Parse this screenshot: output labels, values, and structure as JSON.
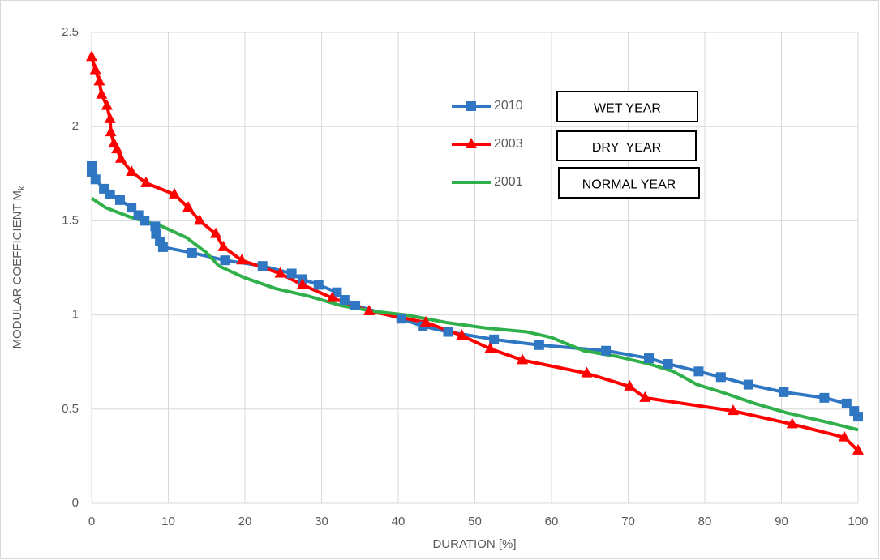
{
  "chart_data": {
    "type": "line",
    "x_label": "DURATION [%]",
    "y_label": "MODULAR COEFFICIENT M",
    "y_label_subscript": "k",
    "xlim": [
      0,
      100
    ],
    "xticks": [
      0,
      10,
      20,
      30,
      40,
      50,
      60,
      70,
      80,
      90,
      100
    ],
    "ylim": [
      0,
      2.5
    ],
    "yticks": [
      0,
      0.5,
      1,
      1.5,
      2,
      2.5
    ],
    "grid": true,
    "annotations": [
      "WET YEAR",
      "DRY  YEAR",
      "NORMAL YEAR"
    ],
    "series": [
      {
        "name": "2010",
        "color": "#2f77c2",
        "marker": "square",
        "x": [
          0,
          0,
          0.5,
          1.6,
          2.4,
          3.7,
          5.2,
          6.1,
          6.9,
          8.3,
          8.4,
          8.9,
          9.3,
          13.1,
          17.4,
          22.3,
          26.1,
          27.5,
          29.6,
          32,
          33,
          34.4,
          40.4,
          43.2,
          46.5,
          52.5,
          58.4,
          67.1,
          72.7,
          75.2,
          79.2,
          82.1,
          85.7,
          90.3,
          95.6,
          98.5,
          99.5,
          100
        ],
        "values": [
          1.79,
          1.76,
          1.72,
          1.67,
          1.64,
          1.61,
          1.57,
          1.53,
          1.5,
          1.47,
          1.43,
          1.39,
          1.36,
          1.33,
          1.29,
          1.26,
          1.22,
          1.19,
          1.16,
          1.12,
          1.08,
          1.05,
          0.98,
          0.94,
          0.91,
          0.87,
          0.84,
          0.81,
          0.77,
          0.74,
          0.7,
          0.67,
          0.63,
          0.59,
          0.56,
          0.53,
          0.49,
          0.46
        ]
      },
      {
        "name": "2003",
        "color": "#ff0000",
        "marker": "triangle",
        "x": [
          0,
          0.5,
          1,
          1.3,
          2,
          2.4,
          2.5,
          2.9,
          3.3,
          3.8,
          5.2,
          7.1,
          10.8,
          12.6,
          14.1,
          16.2,
          17.2,
          19.6,
          24.6,
          27.5,
          31.4,
          36.2,
          43.6,
          48.3,
          52,
          56.2,
          64.6,
          70.2,
          72.2,
          83.7,
          91.4,
          98.2,
          100
        ],
        "values": [
          2.37,
          2.3,
          2.24,
          2.17,
          2.11,
          2.04,
          1.97,
          1.91,
          1.88,
          1.83,
          1.76,
          1.7,
          1.64,
          1.57,
          1.5,
          1.43,
          1.36,
          1.29,
          1.22,
          1.16,
          1.09,
          1.02,
          0.96,
          0.89,
          0.82,
          0.76,
          0.69,
          0.62,
          0.56,
          0.49,
          0.42,
          0.35,
          0.28
        ]
      },
      {
        "name": "2001",
        "color": "#2fb04a",
        "marker": "none",
        "x": [
          0,
          1.8,
          5,
          9.2,
          12.4,
          15,
          16.6,
          19.8,
          24,
          28.3,
          32.5,
          36.7,
          41,
          46.2,
          51.5,
          56.8,
          60,
          64.2,
          68.5,
          72.7,
          75.9,
          79,
          82.2,
          86.5,
          90.7,
          96,
          100
        ],
        "values": [
          1.62,
          1.57,
          1.52,
          1.47,
          1.41,
          1.33,
          1.26,
          1.2,
          1.14,
          1.1,
          1.05,
          1.02,
          1,
          0.96,
          0.93,
          0.91,
          0.88,
          0.81,
          0.78,
          0.74,
          0.7,
          0.63,
          0.59,
          0.53,
          0.48,
          0.43,
          0.39
        ]
      }
    ]
  }
}
